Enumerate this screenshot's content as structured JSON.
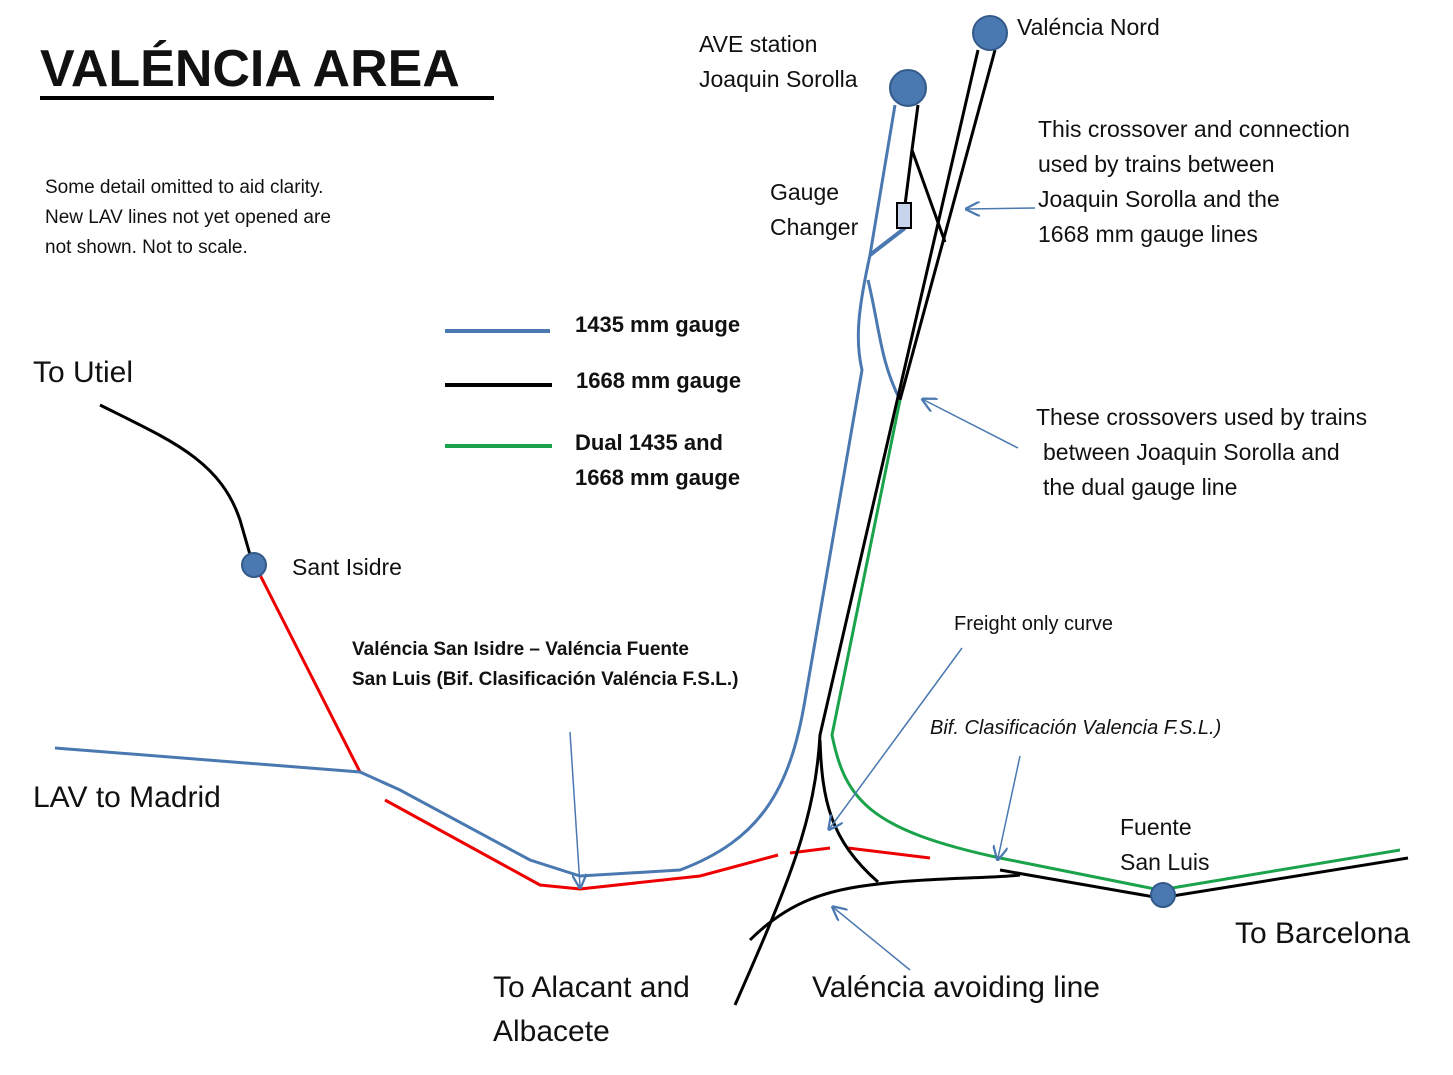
{
  "header": {
    "title": "VALÉNCIA AREA",
    "note": [
      "Some detail omitted to aid clarity.",
      "New LAV lines not yet opened are",
      "not shown.  Not to scale."
    ]
  },
  "legend": [
    {
      "label": [
        "1435 mm gauge"
      ]
    },
    {
      "label": [
        "1668 mm gauge"
      ]
    },
    {
      "label": [
        "Dual 1435 and",
        "1668 mm gauge"
      ]
    }
  ],
  "stations": {
    "ave": [
      "AVE station",
      "Joaquin Sorolla"
    ],
    "nord": "Valéncia Nord",
    "sant_isidre": "Sant Isidre",
    "fuente": [
      "Fuente",
      "San Luis"
    ]
  },
  "labels": {
    "gauge_changer": [
      "Gauge",
      "Changer"
    ],
    "utiel": "To Utiel",
    "madrid": "LAV to Madrid",
    "barcelona": "To Barcelona",
    "alacant": [
      "To Alacant and",
      "Albacete"
    ],
    "avoiding": "Valéncia avoiding line",
    "freight": "Freight only curve",
    "bif": "Bif. Clasificación Valencia F.S.L.)"
  },
  "notes": {
    "crossover": [
      "This crossover and connection",
      "used by trains between",
      "Joaquin Sorolla and the",
      "1668 mm gauge lines"
    ],
    "crossovers": [
      "These crossovers used by trains",
      "between Joaquin Sorolla and",
      "the dual gauge line"
    ],
    "red_line": [
      "Valéncia San Isidre – Valéncia Fuente",
      "San Luis (Bif. Clasificación Valéncia F.S.L.)"
    ]
  }
}
